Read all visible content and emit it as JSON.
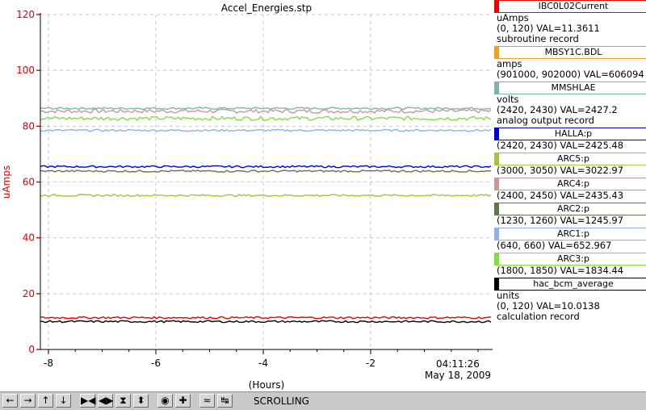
{
  "chart_data": {
    "type": "line",
    "title": "Accel_Energies.stp",
    "xlabel": "(Hours)",
    "ylabel": "uAmps",
    "ylim": [
      0,
      120
    ],
    "xlim": [
      -8.15,
      0.27
    ],
    "y_ticks": [
      "0",
      "20",
      "40",
      "60",
      "80",
      "100",
      "120"
    ],
    "x_ticks": [
      {
        "value": -8,
        "label": "-8"
      },
      {
        "value": -6,
        "label": "-6"
      },
      {
        "value": -4,
        "label": "-4"
      },
      {
        "value": -2,
        "label": "-2"
      }
    ],
    "end_time": "04:11:26",
    "end_date": "May 18, 2009",
    "grid": true,
    "ylabel_color": "#dd0000",
    "series": [
      {
        "name": "ARC4:p",
        "color": "#c49a96",
        "baseline": 85.4
      },
      {
        "name": "MMSHLAE",
        "color": "#7fb2b2",
        "baseline": 86.4
      },
      {
        "name": "ARC3:p",
        "color": "#80e040",
        "baseline": 82.8
      },
      {
        "name": "ARC1:p",
        "color": "#8fb0ec",
        "baseline": 78.5
      },
      {
        "name": "HALLA:p",
        "color": "#0000dd",
        "baseline": 65.5
      },
      {
        "name": "ARC2:p",
        "color": "#607848",
        "baseline": 63.9
      },
      {
        "name": "ARC5:p",
        "color": "#a6c436",
        "baseline": 55.2
      },
      {
        "name": "IBC0L02Current",
        "color": "#ee0000",
        "baseline": 11.4
      },
      {
        "name": "hac_bcm_average",
        "color": "#000000",
        "baseline": 10.0
      }
    ]
  },
  "legend": [
    {
      "name": "IBC0L02Current",
      "color": "#ee0000",
      "lines": [
        "uAmps",
        "(0, 120) VAL=11.3611",
        "subroutine record"
      ]
    },
    {
      "name": "MBSY1C.BDL",
      "color": "#f0a020",
      "lines": [
        "amps",
        "(901000, 902000)  VAL=606094"
      ]
    },
    {
      "name": "MMSHLAE",
      "color": "#7fb2b2",
      "lines": [
        "volts",
        "(2420, 2430)  VAL=2427.2",
        "analog output record"
      ]
    },
    {
      "name": "HALLA:p",
      "color": "#0000dd",
      "lines": [
        "(2420, 2430)  VAL=2425.48"
      ]
    },
    {
      "name": "ARC5:p",
      "color": "#a6c436",
      "lines": [
        "(3000, 3050) VAL=3022.97"
      ]
    },
    {
      "name": "ARC4:p",
      "color": "#c49a96",
      "lines": [
        "(2400, 2450)  VAL=2435.43"
      ]
    },
    {
      "name": "ARC2:p",
      "color": "#607848",
      "lines": [
        "(1230, 1260)  VAL=1245.97"
      ]
    },
    {
      "name": "ARC1:p",
      "color": "#8fb0ec",
      "lines": [
        "(640, 660)  VAL=652.967"
      ]
    },
    {
      "name": "ARC3:p",
      "color": "#80e040",
      "lines": [
        "(1800, 1850)  VAL=1834.44"
      ]
    },
    {
      "name": "hac_bcm_average",
      "color": "#000000",
      "lines": [
        "units",
        "(0, 120)  VAL=10.0138",
        "calculation record"
      ]
    }
  ],
  "toolbar": {
    "buttons": [
      {
        "name": "scroll-left-button",
        "glyph": "←"
      },
      {
        "name": "scroll-right-button",
        "glyph": "→"
      },
      {
        "name": "scroll-up-button",
        "glyph": "↑"
      },
      {
        "name": "scroll-down-button",
        "glyph": "↓"
      },
      {
        "name": "zoom-in-x-button",
        "glyph": "▶◀"
      },
      {
        "name": "zoom-out-x-button",
        "glyph": "◀▶"
      },
      {
        "name": "zoom-in-y-button",
        "glyph": "⧗"
      },
      {
        "name": "zoom-out-y-button",
        "glyph": "⬍"
      },
      {
        "name": "auto-scale-button",
        "glyph": "◉"
      },
      {
        "name": "add-button",
        "glyph": "✚"
      },
      {
        "name": "reset-view-button",
        "glyph": "≈"
      },
      {
        "name": "mode-toggle-button",
        "glyph": "↹"
      }
    ],
    "mode": "SCROLLING"
  }
}
